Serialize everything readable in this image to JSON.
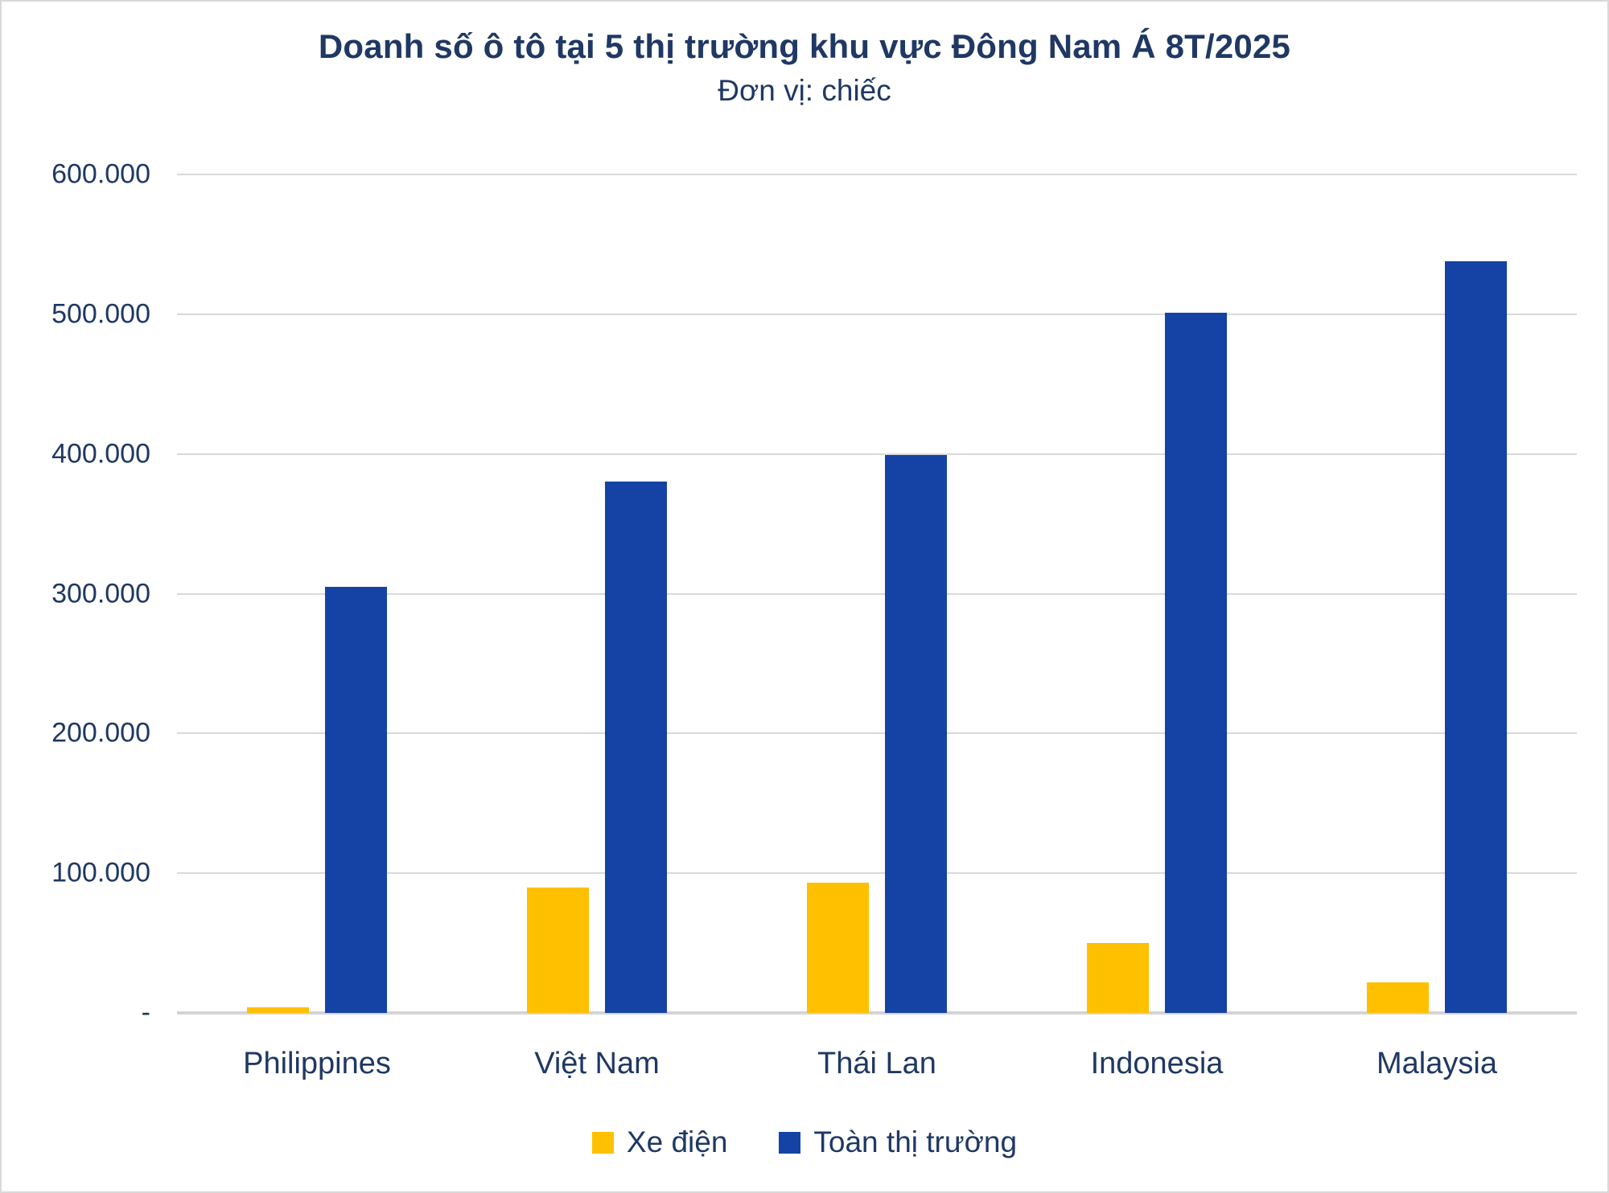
{
  "colors": {
    "text_navy": "#1f3864",
    "ev_yellow": "#ffc000",
    "market_blue": "#1543a5",
    "gridline_grey": "#d9d9d9"
  },
  "chart_data": {
    "type": "bar",
    "title": "Doanh số ô tô tại 5 thị trường khu vực Đông Nam Á 8T/2025",
    "subtitle": "Đơn vị: chiếc",
    "categories": [
      "Philippines",
      "Việt Nam",
      "Thái Lan",
      "Indonesia",
      "Malaysia"
    ],
    "series": [
      {
        "name": "Xe điện",
        "color": "#ffc000",
        "values": [
          4000,
          90000,
          93000,
          50000,
          22000
        ]
      },
      {
        "name": "Toàn thị trường",
        "color": "#1543a5",
        "values": [
          305000,
          380000,
          399000,
          501000,
          538000
        ]
      }
    ],
    "xlabel": "",
    "ylabel": "",
    "ylim": [
      0,
      600000
    ],
    "ytick_step": 100000,
    "ytick_labels": [
      "-",
      "100.000",
      "200.000",
      "300.000",
      "400.000",
      "500.000",
      "600.000"
    ],
    "grid": true,
    "legend_position": "bottom"
  }
}
